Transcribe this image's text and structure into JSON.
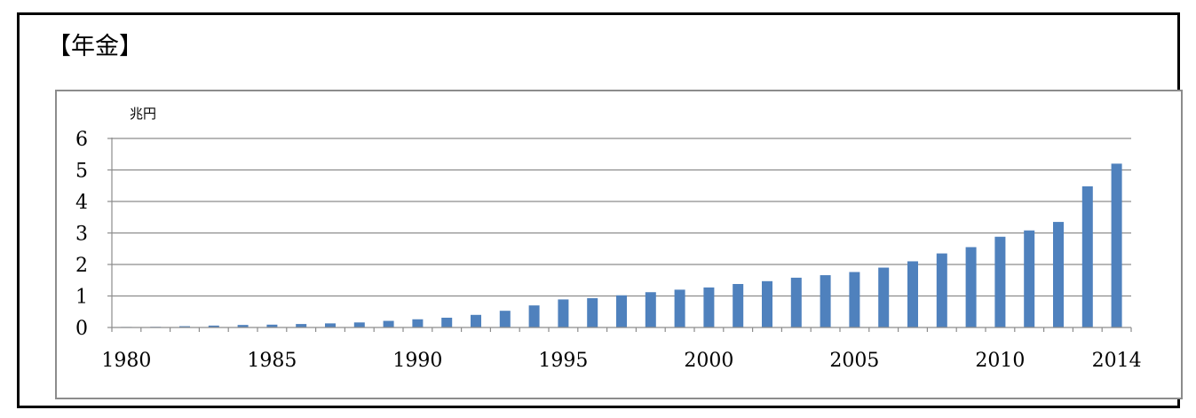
{
  "title": "【年金】",
  "chart_data": {
    "type": "bar",
    "title": "【年金】",
    "ylabel": "兆円",
    "xlabel": "",
    "ylim": [
      0,
      6
    ],
    "y_ticks": [
      0,
      1,
      2,
      3,
      4,
      5,
      6
    ],
    "x_tick_labels": [
      "1980",
      "1985",
      "1990",
      "1995",
      "2000",
      "2005",
      "2010",
      "2014"
    ],
    "grid": true,
    "legend": "none",
    "bar_color": "#4f81bd",
    "categories": [
      "1980",
      "1981",
      "1982",
      "1983",
      "1984",
      "1985",
      "1986",
      "1987",
      "1988",
      "1989",
      "1990",
      "1991",
      "1992",
      "1993",
      "1994",
      "1995",
      "1996",
      "1997",
      "1998",
      "1999",
      "2000",
      "2001",
      "2002",
      "2003",
      "2004",
      "2005",
      "2006",
      "2007",
      "2008",
      "2009",
      "2010",
      "2011",
      "2012",
      "2013",
      "2014"
    ],
    "values": [
      0.01,
      0.02,
      0.04,
      0.06,
      0.08,
      0.09,
      0.11,
      0.13,
      0.16,
      0.21,
      0.26,
      0.31,
      0.4,
      0.53,
      0.7,
      0.89,
      0.93,
      1.02,
      1.12,
      1.2,
      1.27,
      1.38,
      1.47,
      1.58,
      1.66,
      1.76,
      1.9,
      2.1,
      2.35,
      2.55,
      2.88,
      3.08,
      3.35,
      4.48,
      5.2
    ]
  }
}
